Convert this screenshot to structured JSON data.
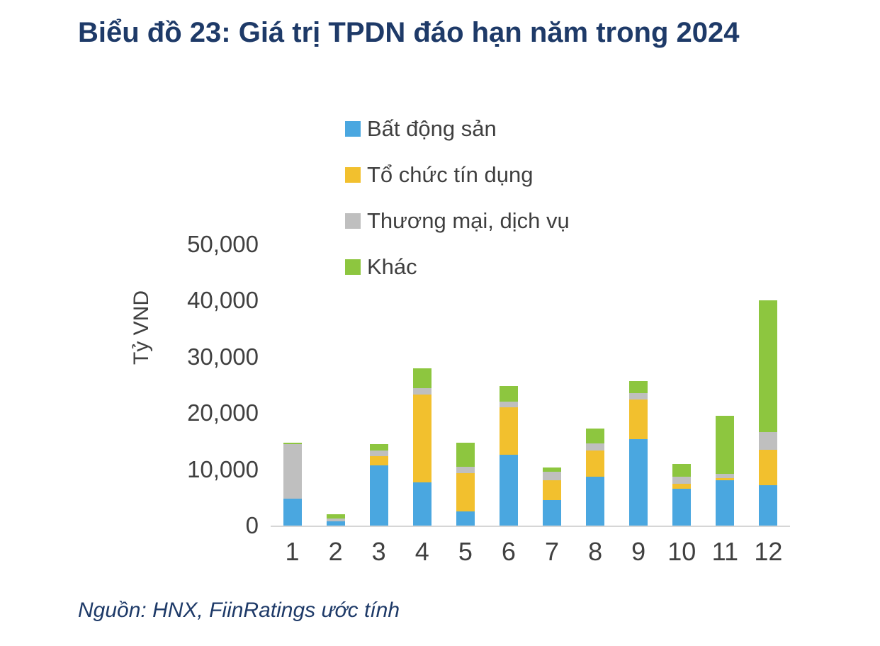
{
  "title": "Biểu đồ 23: Giá trị TPDN đáo hạn năm trong 2024",
  "source": "Nguồn: HNX, FiinRatings ước tính",
  "colors": {
    "title_text": "#1E3A68",
    "axis_text": "#404040",
    "axis_line": "#D6D6D6",
    "real_estate_blue": "#4AA7E0",
    "credit_yellow": "#F2C02E",
    "commerce_gray": "#BFBFBF",
    "other_green": "#8DC63F"
  },
  "chart_data": {
    "type": "bar",
    "stacked": true,
    "title": "Biểu đồ 23: Giá trị TPDN đáo hạn năm trong 2024",
    "xlabel": "",
    "ylabel": "Tỷ VND",
    "ylim": [
      0,
      50000
    ],
    "ytick_values": [
      0,
      10000,
      20000,
      30000,
      40000,
      50000
    ],
    "ytick_labels": [
      "0",
      "10,000",
      "20,000",
      "30,000",
      "40,000",
      "50,000"
    ],
    "grid": false,
    "legend_position": "top",
    "categories": [
      "1",
      "2",
      "3",
      "4",
      "5",
      "6",
      "7",
      "8",
      "9",
      "10",
      "11",
      "12"
    ],
    "series": [
      {
        "name": "Bất động sản",
        "color": "#4AA7E0",
        "values": [
          4800,
          700,
          10700,
          7700,
          2500,
          12600,
          4500,
          8700,
          15400,
          6500,
          8000,
          7200
        ]
      },
      {
        "name": "Tổ chức tín dụng",
        "color": "#F2C02E",
        "values": [
          0,
          0,
          1600,
          15600,
          6800,
          8400,
          3600,
          4700,
          7000,
          900,
          400,
          6300
        ]
      },
      {
        "name": "Thương mại, dịch vụ",
        "color": "#BFBFBF",
        "values": [
          9700,
          500,
          1100,
          1100,
          1200,
          1000,
          1500,
          1200,
          1100,
          1300,
          800,
          3100
        ]
      },
      {
        "name": "Khác",
        "color": "#8DC63F",
        "values": [
          300,
          800,
          1100,
          3600,
          4300,
          2800,
          700,
          2700,
          2200,
          2300,
          10300,
          23400
        ]
      }
    ]
  }
}
